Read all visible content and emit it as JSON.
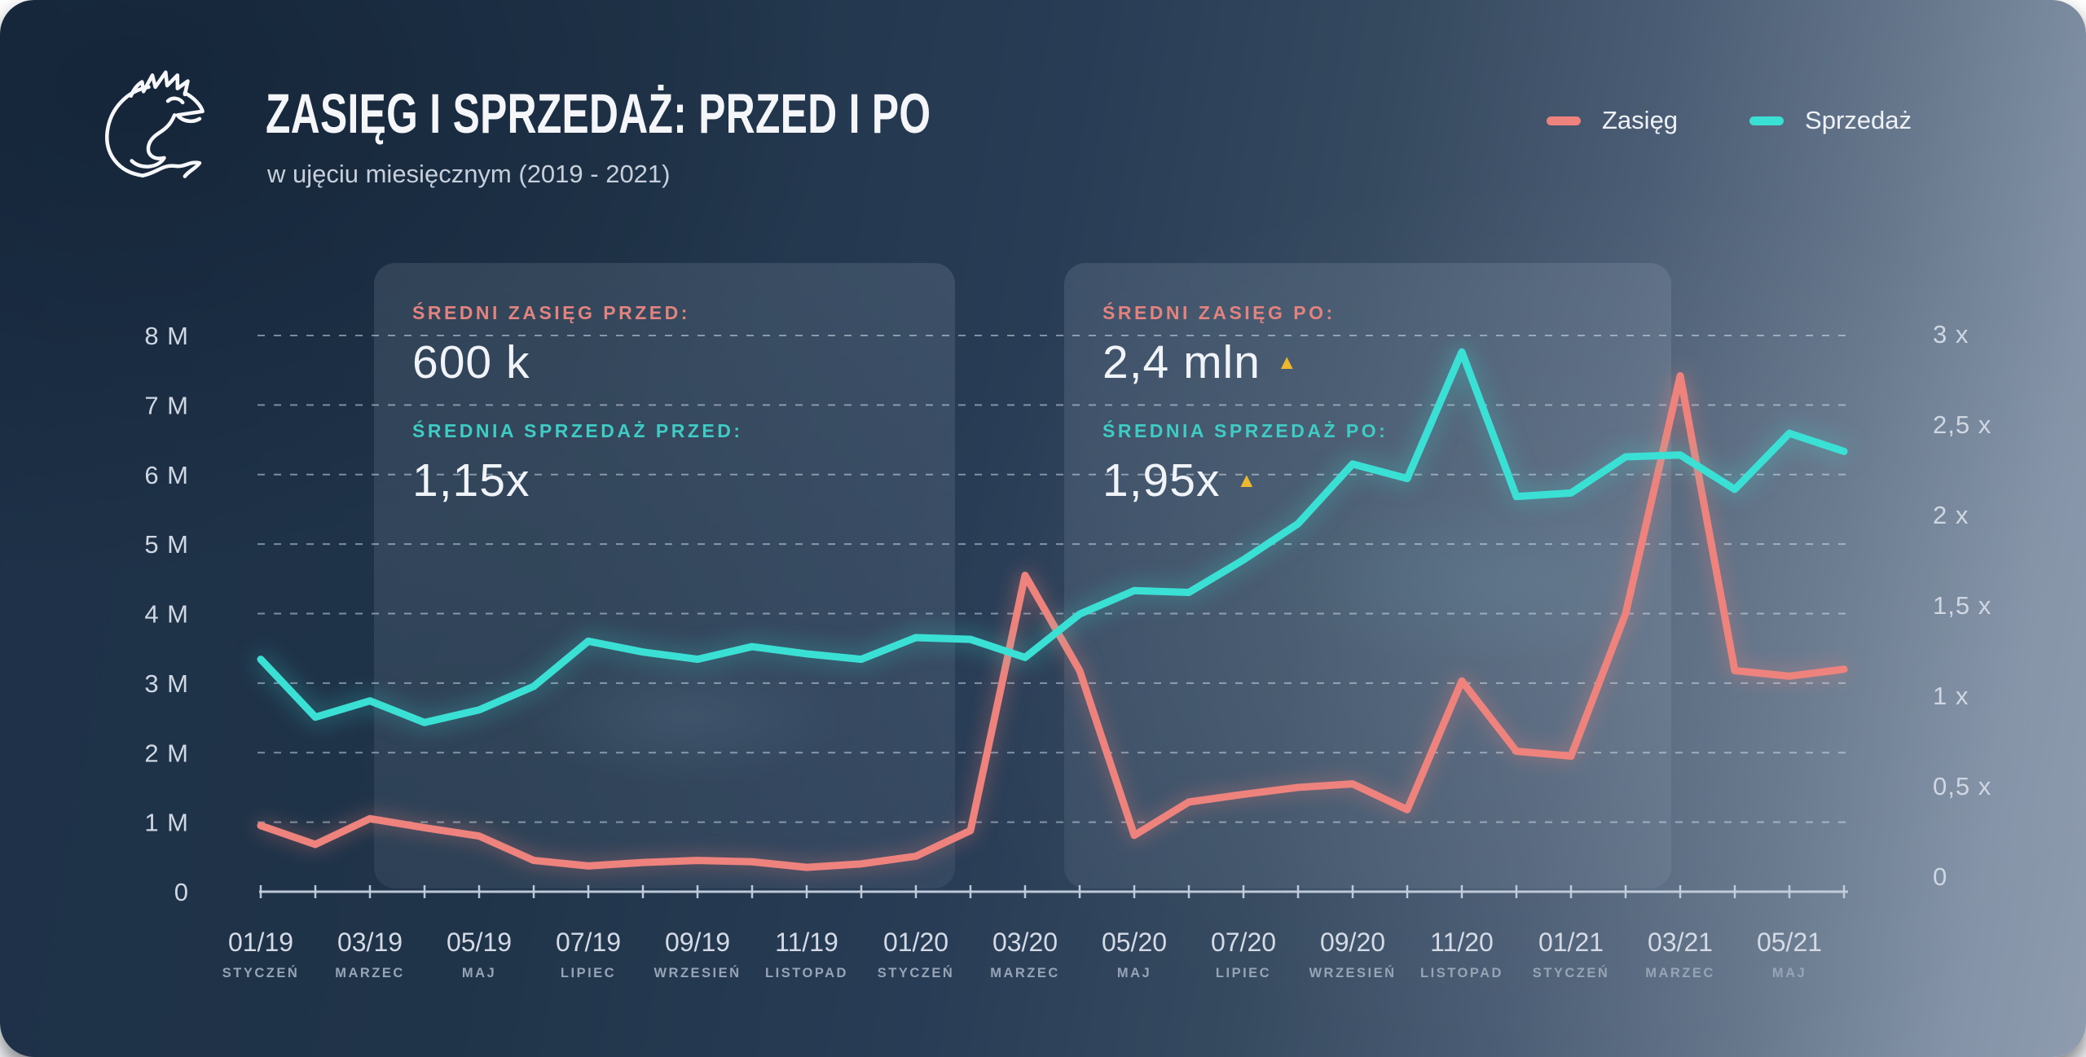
{
  "header": {
    "title": "ZASIĘG I SPRZEDAŻ: PRZED I PO",
    "subtitle": "w ujęciu miesięcznym (2019 - 2021)"
  },
  "legend": [
    {
      "label": "Zasięg",
      "color": "#ee827c"
    },
    {
      "label": "Sprzedaż",
      "color": "#3be0d5"
    }
  ],
  "stats": {
    "panel_before": {
      "reach_label": "ŚREDNI ZASIĘG PRZED:",
      "reach_value": "600 k",
      "sales_label": "ŚREDNIA SPRZEDAŻ PRZED:",
      "sales_value": "1,15x"
    },
    "panel_after": {
      "reach_label": "ŚREDNI ZASIĘG PO:",
      "reach_value": "2,4 mln",
      "reach_trend": "▲",
      "sales_label": "ŚREDNIA SPRZEDAŻ PO:",
      "sales_value": "1,95x",
      "sales_trend": "▲",
      "trend_color": "#edb82d"
    }
  },
  "chart_data": {
    "type": "line",
    "title": "Zasięg i sprzedaż: przed i po",
    "grid": "horizontal-dashed",
    "legend_position": "top-right",
    "months": [
      "01/19",
      "02/19",
      "03/19",
      "04/19",
      "05/19",
      "06/19",
      "07/19",
      "08/19",
      "09/19",
      "10/19",
      "11/19",
      "12/19",
      "01/20",
      "02/20",
      "03/20",
      "04/20",
      "05/20",
      "06/20",
      "07/20",
      "08/20",
      "09/20",
      "10/20",
      "11/20",
      "12/20",
      "01/21",
      "02/21",
      "03/21",
      "04/21",
      "05/21",
      "06/21"
    ],
    "x_labels": [
      {
        "tick": "01/19",
        "month": "STYCZEŃ"
      },
      {
        "tick": "03/19",
        "month": "MARZEC"
      },
      {
        "tick": "05/19",
        "month": "MAJ"
      },
      {
        "tick": "07/19",
        "month": "LIPIEC"
      },
      {
        "tick": "09/19",
        "month": "WRZESIEŃ"
      },
      {
        "tick": "11/19",
        "month": "LISTOPAD"
      },
      {
        "tick": "01/20",
        "month": "STYCZEŃ"
      },
      {
        "tick": "03/20",
        "month": "MARZEC"
      },
      {
        "tick": "05/20",
        "month": "MAJ"
      },
      {
        "tick": "07/20",
        "month": "LIPIEC"
      },
      {
        "tick": "09/20",
        "month": "WRZESIEŃ"
      },
      {
        "tick": "11/20",
        "month": "LISTOPAD"
      },
      {
        "tick": "01/21",
        "month": "STYCZEŃ"
      },
      {
        "tick": "03/21",
        "month": "MARZEC"
      },
      {
        "tick": "05/21",
        "month": "MAJ"
      }
    ],
    "left_axis": {
      "ticks": [
        "8 M",
        "7 M",
        "6 M",
        "5 M",
        "4 M",
        "3 M",
        "2 M",
        "1 M",
        "0"
      ],
      "values": [
        8,
        7,
        6,
        5,
        4,
        3,
        2,
        1,
        0
      ],
      "min": 0,
      "max": 8,
      "unit": "mln"
    },
    "right_axis": {
      "ticks": [
        "3 x",
        "2,5 x",
        "2 x",
        "1,5 x",
        "1 x",
        "0,5 x",
        "0"
      ],
      "values": [
        3,
        2.5,
        2,
        1.5,
        1,
        0.5,
        0
      ],
      "min": 0,
      "max": 3,
      "unit": "x"
    },
    "series": [
      {
        "name": "Zasięg",
        "axis": "left",
        "unit": "mln",
        "color": "#ee827c",
        "values": [
          0.95,
          0.68,
          1.05,
          0.92,
          0.8,
          0.45,
          0.37,
          0.42,
          0.45,
          0.43,
          0.35,
          0.4,
          0.51,
          0.88,
          4.55,
          3.18,
          0.81,
          1.29,
          1.4,
          1.5,
          1.55,
          1.18,
          3.03,
          2.02,
          1.95,
          4.0,
          7.42,
          3.18,
          3.1,
          3.2
        ]
      },
      {
        "name": "Sprzedaż",
        "axis": "right",
        "unit": "x",
        "color": "#3be0d5",
        "values": [
          1.2,
          0.88,
          0.97,
          0.85,
          0.92,
          1.05,
          1.3,
          1.24,
          1.2,
          1.27,
          1.23,
          1.2,
          1.32,
          1.31,
          1.21,
          1.45,
          1.58,
          1.57,
          1.75,
          1.95,
          2.28,
          2.2,
          2.9,
          2.1,
          2.12,
          2.32,
          2.33,
          2.14,
          2.45,
          2.35
        ]
      }
    ]
  }
}
